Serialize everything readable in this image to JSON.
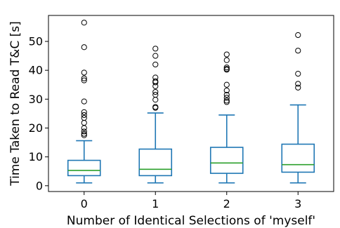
{
  "chart_data": {
    "type": "boxplot",
    "title": "",
    "xlabel": "Number of Identical Selections of 'myself'",
    "ylabel": "Time Taken to Read T&C [s]",
    "categories": [
      "0",
      "1",
      "2",
      "3"
    ],
    "ylim": [
      -2,
      59
    ],
    "yticks": [
      0,
      10,
      20,
      30,
      40,
      50
    ],
    "grid": false,
    "colors": {
      "box": "#1f77b4",
      "median": "#2ca02c",
      "flier": "#000000"
    },
    "boxes": [
      {
        "category": "0",
        "whisker_low": 1.0,
        "q1": 3.5,
        "median": 5.3,
        "q3": 8.8,
        "whisker_high": 15.6,
        "fliers": [
          17.5,
          18.0,
          18.8,
          20.0,
          21.8,
          23.5,
          24.5,
          25.5,
          29.2,
          36.5,
          37.2,
          39.2,
          48.0,
          56.5
        ]
      },
      {
        "category": "1",
        "whisker_low": 1.0,
        "q1": 3.5,
        "median": 5.7,
        "q3": 12.7,
        "whisker_high": 25.2,
        "fliers": [
          27.0,
          27.3,
          29.8,
          31.5,
          32.5,
          34.5,
          35.8,
          36.2,
          37.5,
          42.0,
          45.0,
          47.5
        ]
      },
      {
        "category": "2",
        "whisker_low": 1.0,
        "q1": 4.3,
        "median": 7.9,
        "q3": 13.3,
        "whisker_high": 24.5,
        "fliers": [
          29.0,
          29.5,
          30.5,
          31.5,
          33.0,
          35.0,
          40.2,
          40.5,
          41.0,
          43.5,
          45.5
        ]
      },
      {
        "category": "3",
        "whisker_low": 1.0,
        "q1": 4.7,
        "median": 7.3,
        "q3": 14.4,
        "whisker_high": 28.0,
        "fliers": [
          34.0,
          35.3,
          38.8,
          46.8,
          52.2
        ]
      }
    ]
  }
}
